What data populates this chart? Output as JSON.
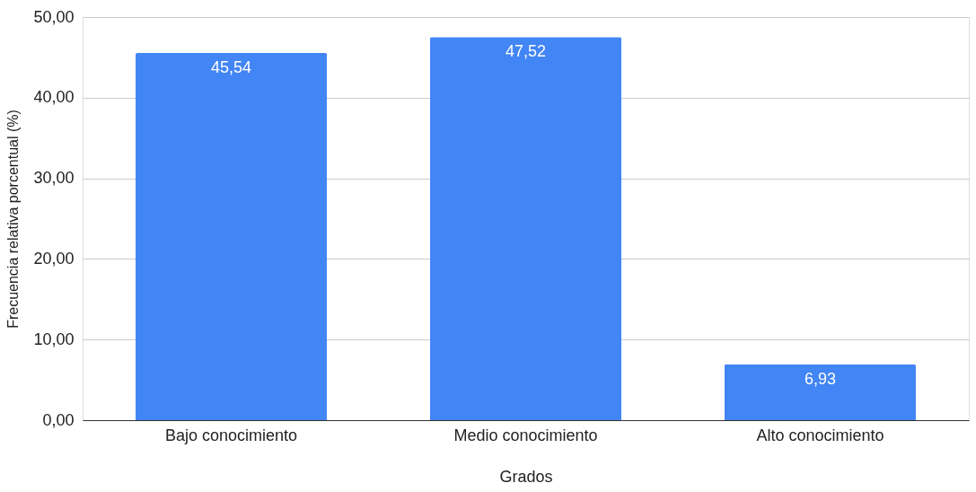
{
  "chart_data": {
    "type": "bar",
    "xlabel": "Grados",
    "ylabel": "Frecuencia relativa porcentual (%)",
    "categories": [
      "Bajo conocimiento",
      "Medio conocimiento",
      "Alto conocimiento"
    ],
    "values": [
      45.54,
      47.52,
      6.93
    ],
    "value_labels": [
      "45,54",
      "47,52",
      "6,93"
    ],
    "color": "#4285f4",
    "ylim": [
      0,
      50
    ],
    "yticks": [
      {
        "value": 0,
        "label": "0,00"
      },
      {
        "value": 10,
        "label": "10,00"
      },
      {
        "value": 20,
        "label": "20,00"
      },
      {
        "value": 30,
        "label": "30,00"
      },
      {
        "value": 40,
        "label": "40,00"
      },
      {
        "value": 50,
        "label": "50,00"
      }
    ],
    "grid": "y"
  }
}
